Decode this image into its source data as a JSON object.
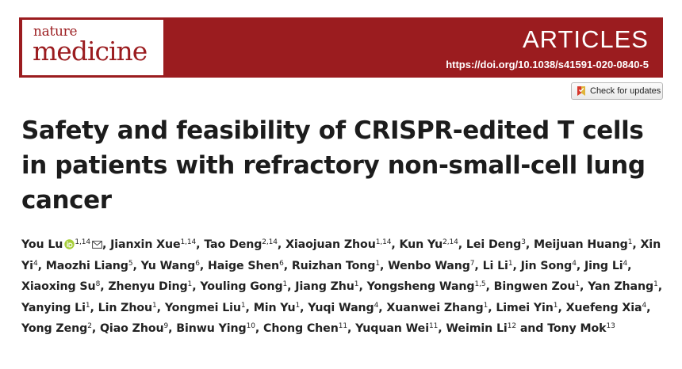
{
  "header": {
    "journal_small": "nature",
    "journal_big": "medicine",
    "section": "ARTICLES",
    "doi": "https://doi.org/10.1038/s41591-020-0840-5",
    "brand_color": "#9b1c1f"
  },
  "updates_button": {
    "label": "Check for updates"
  },
  "title": "Safety and feasibility of CRISPR-edited T cells in patients with refractory non-small-cell lung cancer",
  "authors": [
    {
      "name": "You Lu",
      "aff": "1,14",
      "orcid": true,
      "email": true
    },
    {
      "name": "Jianxin Xue",
      "aff": "1,14"
    },
    {
      "name": "Tao Deng",
      "aff": "2,14"
    },
    {
      "name": "Xiaojuan Zhou",
      "aff": "1,14"
    },
    {
      "name": "Kun Yu",
      "aff": "2,14"
    },
    {
      "name": "Lei Deng",
      "aff": "3"
    },
    {
      "name": "Meijuan Huang",
      "aff": "1"
    },
    {
      "name": "Xin Yi",
      "aff": "4"
    },
    {
      "name": "Maozhi Liang",
      "aff": "5"
    },
    {
      "name": "Yu Wang",
      "aff": "6"
    },
    {
      "name": "Haige Shen",
      "aff": "6"
    },
    {
      "name": "Ruizhan Tong",
      "aff": "1"
    },
    {
      "name": "Wenbo Wang",
      "aff": "7"
    },
    {
      "name": "Li Li",
      "aff": "1"
    },
    {
      "name": "Jin Song",
      "aff": "4"
    },
    {
      "name": "Jing Li",
      "aff": "4"
    },
    {
      "name": "Xiaoxing Su",
      "aff": "8"
    },
    {
      "name": "Zhenyu Ding",
      "aff": "1"
    },
    {
      "name": "Youling Gong",
      "aff": "1"
    },
    {
      "name": "Jiang Zhu",
      "aff": "1"
    },
    {
      "name": "Yongsheng Wang",
      "aff": "1,5"
    },
    {
      "name": "Bingwen Zou",
      "aff": "1"
    },
    {
      "name": "Yan Zhang",
      "aff": "1"
    },
    {
      "name": "Yanying Li",
      "aff": "1"
    },
    {
      "name": "Lin Zhou",
      "aff": "1"
    },
    {
      "name": "Yongmei Liu",
      "aff": "1"
    },
    {
      "name": "Min Yu",
      "aff": "1"
    },
    {
      "name": "Yuqi Wang",
      "aff": "4"
    },
    {
      "name": "Xuanwei Zhang",
      "aff": "1"
    },
    {
      "name": "Limei Yin",
      "aff": "1"
    },
    {
      "name": "Xuefeng Xia",
      "aff": "4"
    },
    {
      "name": "Yong Zeng",
      "aff": "2"
    },
    {
      "name": "Qiao Zhou",
      "aff": "9"
    },
    {
      "name": "Binwu Ying",
      "aff": "10"
    },
    {
      "name": "Chong Chen",
      "aff": "11"
    },
    {
      "name": "Yuquan Wei",
      "aff": "11"
    },
    {
      "name": "Weimin Li",
      "aff": "12"
    },
    {
      "name": "Tony Mok",
      "aff": "13"
    }
  ],
  "authors_and": "and"
}
